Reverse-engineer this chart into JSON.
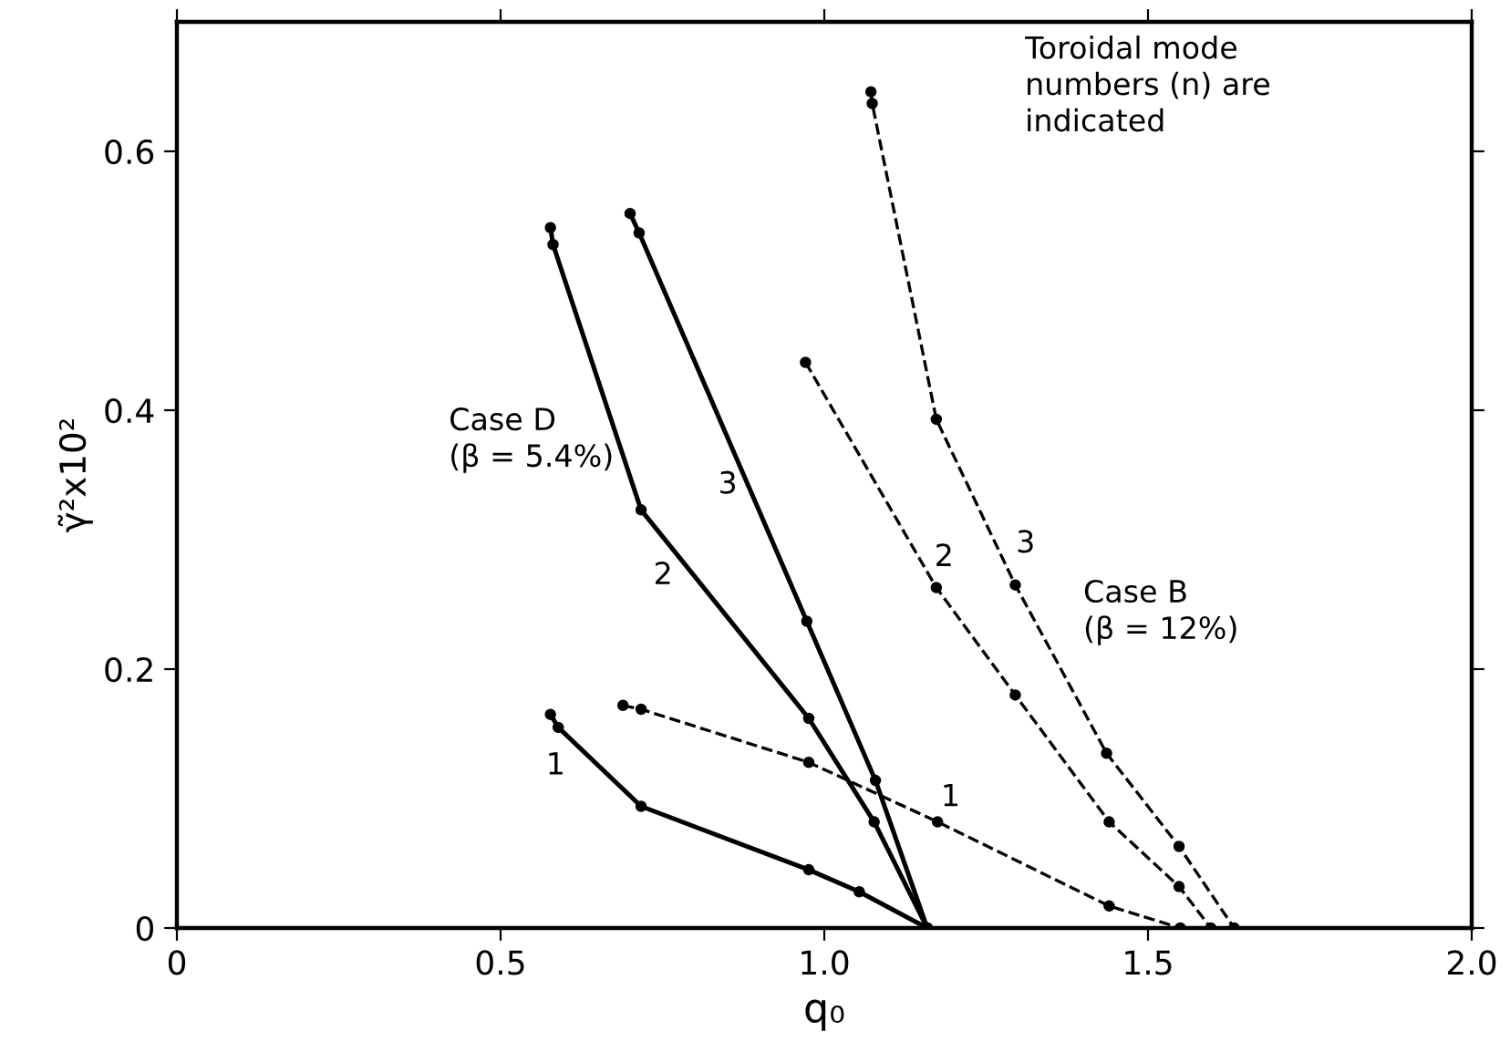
{
  "chart_data": {
    "type": "line",
    "xlabel": "q₀",
    "ylabel": "γ̃²x10²",
    "xlim": [
      0,
      2.0
    ],
    "ylim": [
      0,
      0.7
    ],
    "xticks": [
      0,
      0.5,
      {
        "value": 1,
        "label": "1.0"
      },
      1.5,
      {
        "value": 2,
        "label": "2.0"
      }
    ],
    "yticks": [
      0,
      0.2,
      0.4,
      0.6
    ],
    "grid": false,
    "legend": false,
    "marker": "circle",
    "series": [
      {
        "color": "#000000",
        "line_style": "solid",
        "x": [
          0.577,
          0.589,
          0.717,
          0.976,
          1.054,
          1.159
        ],
        "values": [
          0.165,
          0.155,
          0.094,
          0.045,
          0.028,
          0
        ]
      },
      {
        "color": "#000000",
        "line_style": "solid",
        "x": [
          0.577,
          0.581,
          0.717,
          0.976,
          1.077,
          1.159
        ],
        "values": [
          0.541,
          0.528,
          0.323,
          0.162,
          0.082,
          0
        ]
      },
      {
        "color": "#000000",
        "line_style": "solid",
        "x": [
          0.7,
          0.714,
          0.973,
          1.079,
          1.159
        ],
        "values": [
          0.552,
          0.537,
          0.237,
          0.114,
          0
        ]
      },
      {
        "color": "#000000",
        "line_style": "dashed",
        "x": [
          0.689,
          0.717,
          0.976,
          1.175,
          1.44,
          1.55
        ],
        "values": [
          0.172,
          0.169,
          0.128,
          0.082,
          0.017,
          0
        ]
      },
      {
        "color": "#000000",
        "line_style": "dashed",
        "x": [
          0.971,
          1.173,
          1.295,
          1.44,
          1.548,
          1.597
        ],
        "values": [
          0.437,
          0.263,
          0.18,
          0.082,
          0.032,
          0
        ]
      },
      {
        "color": "#000000",
        "line_style": "dashed",
        "x": [
          1.072,
          1.074,
          1.173,
          1.295,
          1.436,
          1.548,
          1.633
        ],
        "values": [
          0.646,
          0.637,
          0.393,
          0.265,
          0.135,
          0.063,
          0
        ]
      }
    ],
    "annotations": [
      "1",
      "2",
      "3",
      "1",
      "2",
      "3",
      "Case D\n(β = 5.4%)",
      "Case B\n(β = 12%)",
      "Toroidal mode\nnumbers (n) are\nindicated"
    ]
  }
}
